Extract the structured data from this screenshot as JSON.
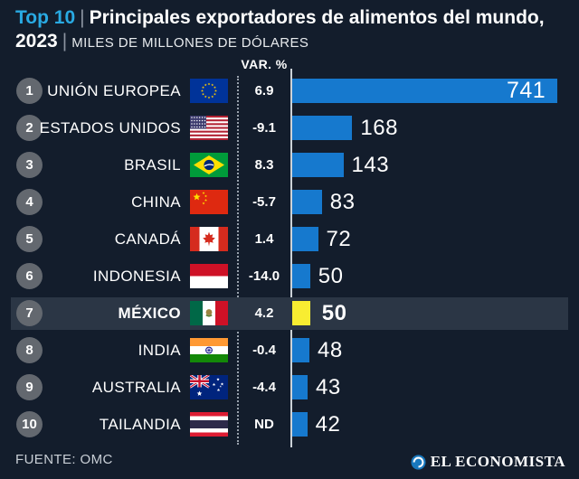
{
  "title": {
    "highlight": "Top 10",
    "separator": "|",
    "main": "Principales exportadores de alimentos del mundo, 2023",
    "unit": "MILES DE MILLONES DE DÓLARES"
  },
  "columns": {
    "var_header": "VAR. %"
  },
  "footer": {
    "source": "FUENTE: OMC",
    "brand": "EL ECONOMISTA"
  },
  "colors": {
    "background": "#131d2c",
    "accent": "#29aae3",
    "bar": "#1679ce",
    "bar_highlight": "#f8ed31",
    "row_highlight": "#2b3645",
    "rank_circle": "#63686f",
    "axis": "#ccd2d8"
  },
  "chart_data": {
    "type": "bar",
    "title": "Top 10 | Principales exportadores de alimentos del mundo, 2023",
    "unit_label": "Miles de millones de dólares",
    "var_column_label": "VAR. %",
    "source": "FUENTE: OMC",
    "orientation": "horizontal",
    "xlim": [
      0,
      760
    ],
    "rows": [
      {
        "rank": 1,
        "country": "UNIÓN EUROPEA",
        "flag": "eu",
        "var_pct": "6.9",
        "value": 741,
        "highlight": false,
        "label_inside": true
      },
      {
        "rank": 2,
        "country": "ESTADOS UNIDOS",
        "flag": "us",
        "var_pct": "-9.1",
        "value": 168,
        "highlight": false,
        "label_inside": false
      },
      {
        "rank": 3,
        "country": "BRASIL",
        "flag": "br",
        "var_pct": "8.3",
        "value": 143,
        "highlight": false,
        "label_inside": false
      },
      {
        "rank": 4,
        "country": "CHINA",
        "flag": "cn",
        "var_pct": "-5.7",
        "value": 83,
        "highlight": false,
        "label_inside": false
      },
      {
        "rank": 5,
        "country": "CANADÁ",
        "flag": "ca",
        "var_pct": "1.4",
        "value": 72,
        "highlight": false,
        "label_inside": false
      },
      {
        "rank": 6,
        "country": "INDONESIA",
        "flag": "id",
        "var_pct": "-14.0",
        "value": 50,
        "highlight": false,
        "label_inside": false
      },
      {
        "rank": 7,
        "country": "MÉXICO",
        "flag": "mx",
        "var_pct": "4.2",
        "value": 50,
        "highlight": true,
        "label_inside": false
      },
      {
        "rank": 8,
        "country": "INDIA",
        "flag": "in",
        "var_pct": "-0.4",
        "value": 48,
        "highlight": false,
        "label_inside": false
      },
      {
        "rank": 9,
        "country": "AUSTRALIA",
        "flag": "au",
        "var_pct": "-4.4",
        "value": 43,
        "highlight": false,
        "label_inside": false
      },
      {
        "rank": 10,
        "country": "TAILANDIA",
        "flag": "th",
        "var_pct": "ND",
        "value": 42,
        "highlight": false,
        "label_inside": false
      }
    ]
  }
}
